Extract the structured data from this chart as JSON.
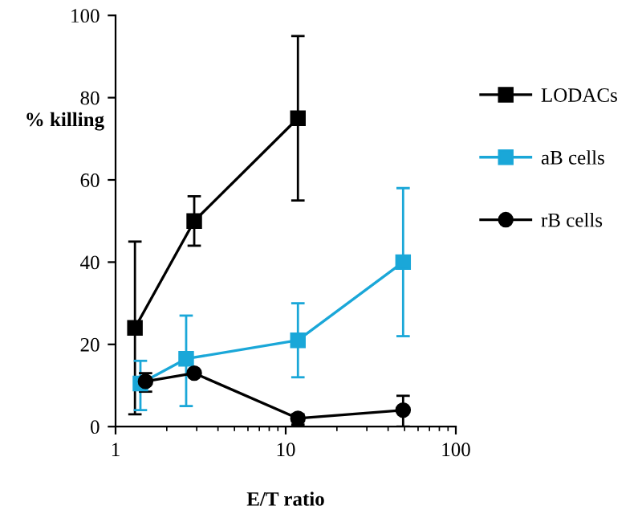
{
  "chart_data": {
    "type": "line",
    "xlabel": "E/T ratio",
    "ylabel": "% killing",
    "log": "x",
    "xlim": [
      1,
      100
    ],
    "xticks": [
      1,
      10,
      100
    ],
    "ylim": [
      0,
      100
    ],
    "yticks": [
      0,
      20,
      40,
      60,
      80,
      100
    ],
    "legend": "right",
    "grid": false,
    "series": [
      {
        "name": "LODACs",
        "color": "#000000",
        "marker": "square",
        "x": [
          1.3,
          2.9,
          11.8
        ],
        "values": [
          24,
          50,
          75
        ],
        "errors": [
          [
            3,
            45
          ],
          [
            44,
            56
          ],
          [
            55,
            95
          ]
        ]
      },
      {
        "name": "aB cells",
        "color": "#1aa7d8",
        "marker": "square",
        "x": [
          1.4,
          2.6,
          11.8,
          49
        ],
        "values": [
          10.5,
          16.5,
          21,
          40
        ],
        "errors": [
          [
            4,
            16
          ],
          [
            5,
            27
          ],
          [
            12,
            30
          ],
          [
            22,
            58
          ]
        ]
      },
      {
        "name": "rB cells",
        "color": "#000000",
        "marker": "circle",
        "x": [
          1.5,
          2.9,
          11.8,
          49
        ],
        "values": [
          11,
          13,
          2,
          4
        ],
        "errors": [
          [
            8.5,
            13
          ],
          null,
          [
            0.5,
            3
          ],
          [
            0,
            7.5
          ]
        ]
      }
    ]
  }
}
